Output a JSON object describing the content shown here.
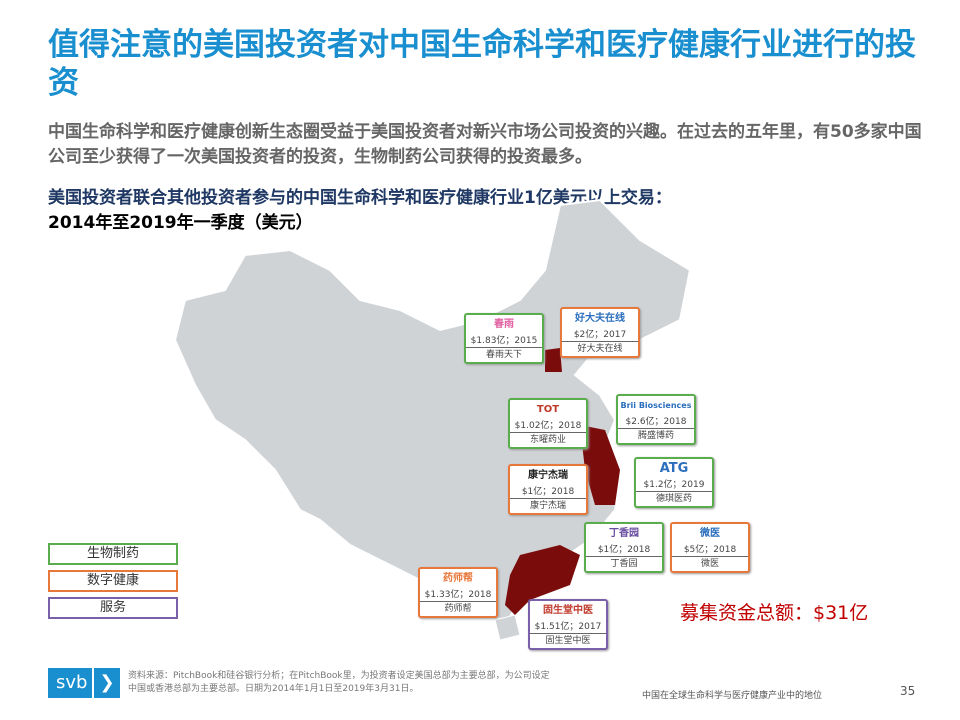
{
  "title": "值得注意的美国投资者对中国生命科学和医疗健康行业进行的投资",
  "lead": "中国生命科学和医疗健康创新生态圈受益于美国投资者对新兴市场公司投资的兴趣。在过去的五年里，有50多家中国公司至少获得了一次美国投资者的投资，生物制药公司获得的投资最多。",
  "subtitle_line1": "美国投资者联合其他投资者参与的中国生命科学和医疗健康行业1亿美元以上交易：",
  "subtitle_line2": "2014年至2019年一季度（美元）",
  "colors": {
    "biopharma": "#5aad4c",
    "digital_health": "#e8773a",
    "services": "#7a60a8",
    "highlight_region": "#7b0c0c",
    "map_fill": "#d0d3d6"
  },
  "deals": [
    {
      "logo": "春雨",
      "amount": "$1.83亿；2015",
      "name": "春雨天下",
      "category": "biopharma"
    },
    {
      "logo": "好大夫在线",
      "amount": "$2亿；2017",
      "name": "好大夫在线",
      "category": "digital_health"
    },
    {
      "logo": "TOT",
      "amount": "$1.02亿；2018",
      "name": "东曜药业",
      "category": "biopharma"
    },
    {
      "logo": "Brii Biosciences",
      "amount": "$2.6亿；2018",
      "name": "腾盛博药",
      "category": "biopharma"
    },
    {
      "logo": "康宁杰瑞",
      "amount": "$1亿；2018",
      "name": "康宁杰瑞",
      "category": "digital_health"
    },
    {
      "logo": "ATG",
      "amount": "$1.2亿；2019",
      "name": "德琪医药",
      "category": "biopharma"
    },
    {
      "logo": "丁香园",
      "amount": "$1亿；2018",
      "name": "丁香园",
      "category": "biopharma"
    },
    {
      "logo": "微医",
      "amount": "$5亿；2018",
      "name": "微医",
      "category": "digital_health"
    },
    {
      "logo": "药师帮",
      "amount": "$1.33亿；2018",
      "name": "药师帮",
      "category": "digital_health"
    },
    {
      "logo": "固生堂中医",
      "amount": "$1.51亿；2017",
      "name": "固生堂中医",
      "category": "services"
    }
  ],
  "legend": [
    "生物制药",
    "数字健康",
    "服务"
  ],
  "total": "募集资金总额：$31亿",
  "source": "资料来源：PitchBook和硅谷银行分析；在PitchBook里，为投资者设定美国总部为主要总部，为公司设定中国或香港总部为主要总部。日期为2014年1月1日至2019年3月31日。",
  "brand": "svb",
  "footer": "中国在全球生命科学与医疗健康产业中的地位",
  "page": "35"
}
